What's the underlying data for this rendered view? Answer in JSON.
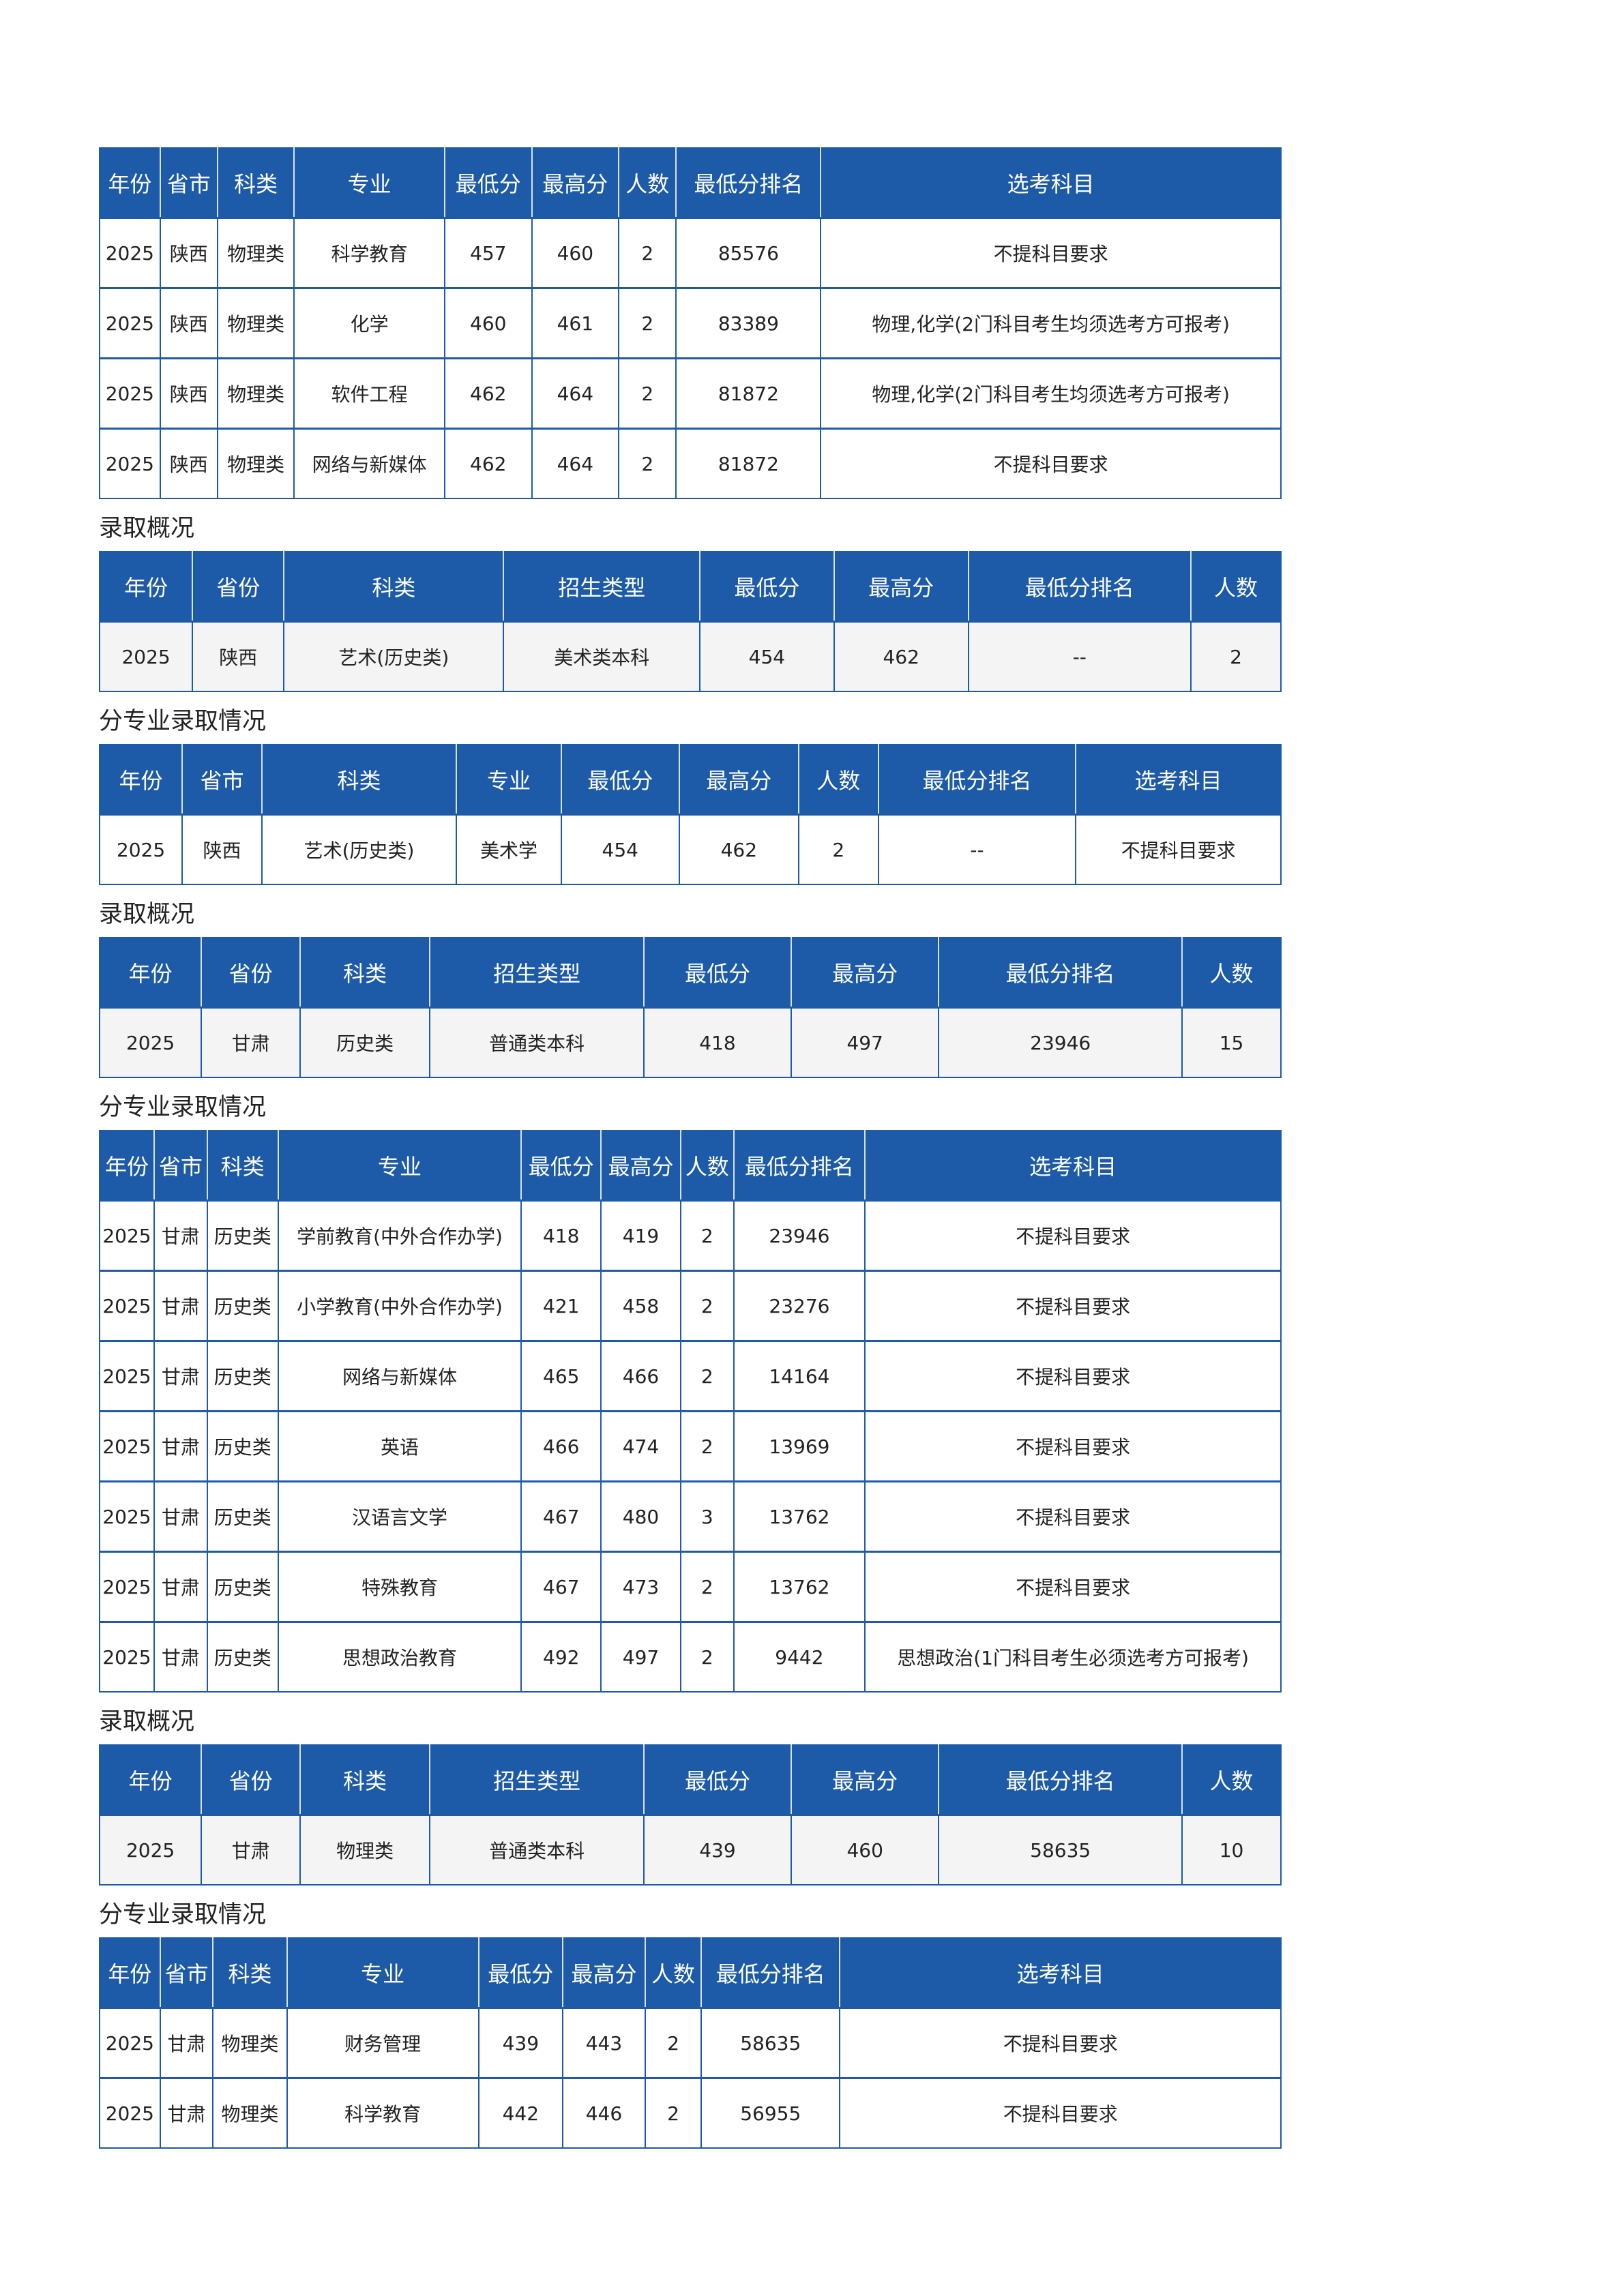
{
  "sections": [
    {
      "kind": "detail",
      "title": "",
      "headers": [
        "年份",
        "省市",
        "科类",
        "专业",
        "最低分",
        "最高分",
        "人数",
        "最低分排名",
        "选考科目"
      ],
      "rows": [
        [
          "2025",
          "陕西",
          "物理类",
          "科学教育",
          "457",
          "460",
          "2",
          "85576",
          "不提科目要求"
        ],
        [
          "2025",
          "陕西",
          "物理类",
          "化学",
          "460",
          "461",
          "2",
          "83389",
          "物理,化学(2门科目考生均须选考方可报考)"
        ],
        [
          "2025",
          "陕西",
          "物理类",
          "软件工程",
          "462",
          "464",
          "2",
          "81872",
          "物理,化学(2门科目考生均须选考方可报考)"
        ],
        [
          "2025",
          "陕西",
          "物理类",
          "网络与新媒体",
          "462",
          "464",
          "2",
          "81872",
          "不提科目要求"
        ]
      ]
    },
    {
      "kind": "overview",
      "title": "录取概况",
      "headers": [
        "年份",
        "省份",
        "科类",
        "招生类型",
        "最低分",
        "最高分",
        "最低分排名",
        "人数"
      ],
      "rows": [
        [
          "2025",
          "陕西",
          "艺术(历史类)",
          "美术类本科",
          "454",
          "462",
          "--",
          "2"
        ]
      ]
    },
    {
      "kind": "detail",
      "title": "分专业录取情况",
      "headers": [
        "年份",
        "省市",
        "科类",
        "专业",
        "最低分",
        "最高分",
        "人数",
        "最低分排名",
        "选考科目"
      ],
      "rows": [
        [
          "2025",
          "陕西",
          "艺术(历史类)",
          "美术学",
          "454",
          "462",
          "2",
          "--",
          "不提科目要求"
        ]
      ]
    },
    {
      "kind": "overview",
      "title": "录取概况",
      "headers": [
        "年份",
        "省份",
        "科类",
        "招生类型",
        "最低分",
        "最高分",
        "最低分排名",
        "人数"
      ],
      "rows": [
        [
          "2025",
          "甘肃",
          "历史类",
          "普通类本科",
          "418",
          "497",
          "23946",
          "15"
        ]
      ]
    },
    {
      "kind": "detail",
      "title": "分专业录取情况",
      "headers": [
        "年份",
        "省市",
        "科类",
        "专业",
        "最低分",
        "最高分",
        "人数",
        "最低分排名",
        "选考科目"
      ],
      "rows": [
        [
          "2025",
          "甘肃",
          "历史类",
          "学前教育(中外合作办学)",
          "418",
          "419",
          "2",
          "23946",
          "不提科目要求"
        ],
        [
          "2025",
          "甘肃",
          "历史类",
          "小学教育(中外合作办学)",
          "421",
          "458",
          "2",
          "23276",
          "不提科目要求"
        ],
        [
          "2025",
          "甘肃",
          "历史类",
          "网络与新媒体",
          "465",
          "466",
          "2",
          "14164",
          "不提科目要求"
        ],
        [
          "2025",
          "甘肃",
          "历史类",
          "英语",
          "466",
          "474",
          "2",
          "13969",
          "不提科目要求"
        ],
        [
          "2025",
          "甘肃",
          "历史类",
          "汉语言文学",
          "467",
          "480",
          "3",
          "13762",
          "不提科目要求"
        ],
        [
          "2025",
          "甘肃",
          "历史类",
          "特殊教育",
          "467",
          "473",
          "2",
          "13762",
          "不提科目要求"
        ],
        [
          "2025",
          "甘肃",
          "历史类",
          "思想政治教育",
          "492",
          "497",
          "2",
          "9442",
          "思想政治(1门科目考生必须选考方可报考)"
        ]
      ]
    },
    {
      "kind": "overview",
      "title": "录取概况",
      "headers": [
        "年份",
        "省份",
        "科类",
        "招生类型",
        "最低分",
        "最高分",
        "最低分排名",
        "人数"
      ],
      "rows": [
        [
          "2025",
          "甘肃",
          "物理类",
          "普通类本科",
          "439",
          "460",
          "58635",
          "10"
        ]
      ]
    },
    {
      "kind": "detail",
      "title": "分专业录取情况",
      "headers": [
        "年份",
        "省市",
        "科类",
        "专业",
        "最低分",
        "最高分",
        "人数",
        "最低分排名",
        "选考科目"
      ],
      "rows": [
        [
          "2025",
          "甘肃",
          "物理类",
          "财务管理",
          "439",
          "443",
          "2",
          "58635",
          "不提科目要求"
        ],
        [
          "2025",
          "甘肃",
          "物理类",
          "科学教育",
          "442",
          "446",
          "2",
          "56955",
          "不提科目要求"
        ]
      ]
    }
  ],
  "colors": {
    "header_bg": "#1d5aa8",
    "overview_row_bg": "#f4f4f4"
  }
}
